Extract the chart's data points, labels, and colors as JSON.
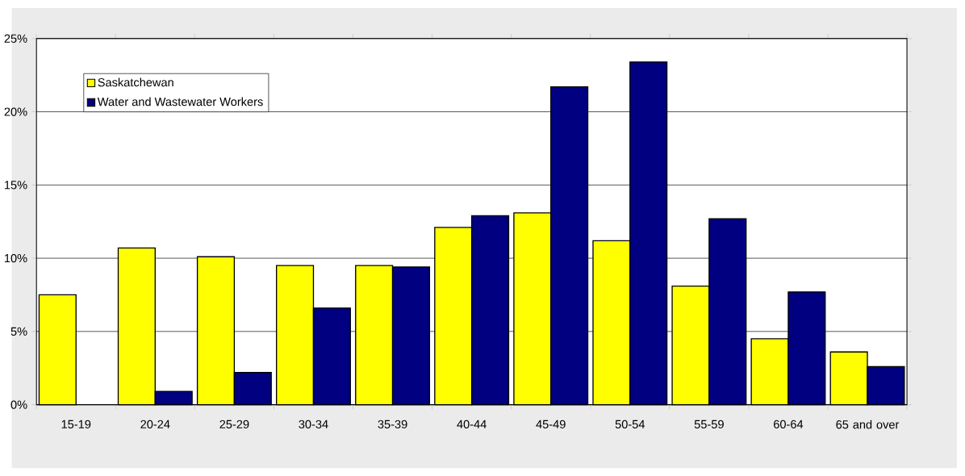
{
  "chart_data": {
    "type": "bar",
    "categories": [
      "15-19",
      "20-24",
      "25-29",
      "30-34",
      "35-39",
      "40-44",
      "45-49",
      "50-54",
      "55-59",
      "60-64",
      "65 and over"
    ],
    "series": [
      {
        "name": "Saskatchewan",
        "color": "#ffff00",
        "values": [
          7.5,
          10.7,
          10.1,
          9.5,
          9.5,
          12.1,
          13.1,
          11.2,
          8.1,
          4.5,
          3.6
        ]
      },
      {
        "name": "Water and Wastewater Workers",
        "color": "#000080",
        "values": [
          null,
          0.9,
          2.2,
          6.6,
          9.4,
          12.9,
          21.7,
          23.4,
          12.7,
          7.7,
          2.6
        ]
      }
    ],
    "ylim": [
      0,
      25
    ],
    "yticks": [
      {
        "value": 0,
        "label": "0%"
      },
      {
        "value": 5,
        "label": "5%"
      },
      {
        "value": 10,
        "label": "10%"
      },
      {
        "value": 15,
        "label": "15%"
      },
      {
        "value": 20,
        "label": "20%"
      },
      {
        "value": 25,
        "label": "25%"
      }
    ],
    "grid": "y",
    "legend": "top left"
  }
}
